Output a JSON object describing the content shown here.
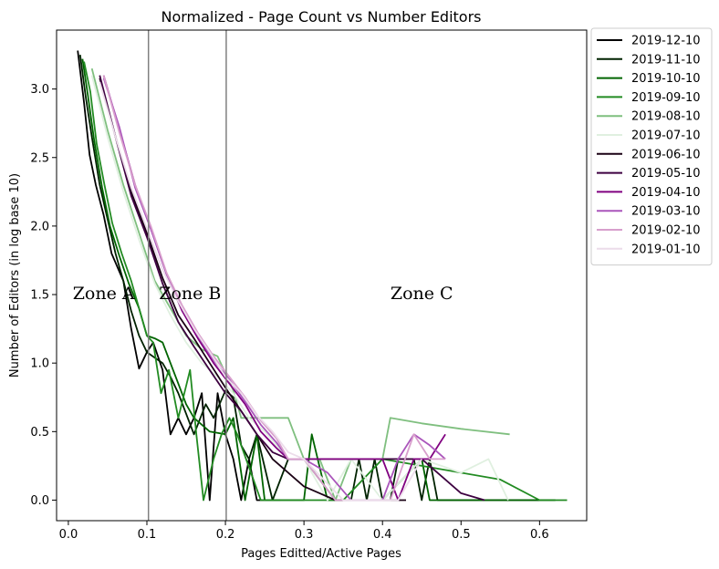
{
  "chart_data": {
    "type": "line",
    "title": "Normalized - Page Count vs Number Editors",
    "xlabel": "Pages Editted/Active Pages",
    "ylabel": "Number of Editors (in log base 10)",
    "xlim": [
      -0.015,
      0.66
    ],
    "ylim": [
      -0.15,
      3.43
    ],
    "xticks": [
      0.0,
      0.1,
      0.2,
      0.3,
      0.4,
      0.5,
      0.6
    ],
    "xtick_labels": [
      "0.0",
      "0.1",
      "0.2",
      "0.3",
      "0.4",
      "0.5",
      "0.6"
    ],
    "yticks": [
      0.0,
      0.5,
      1.0,
      1.5,
      2.0,
      2.5,
      3.0
    ],
    "ytick_labels": [
      "0.0",
      "0.5",
      "1.0",
      "1.5",
      "2.0",
      "2.5",
      "3.0"
    ],
    "grid": false,
    "legend_position": "outside-top-right",
    "vlines": [
      0.102,
      0.201
    ],
    "vline_color": "#808080",
    "annotations": [
      {
        "text": "Zone A",
        "x": 0.045,
        "y": 1.5
      },
      {
        "text": "Zone B",
        "x": 0.155,
        "y": 1.5
      },
      {
        "text": "Zone C",
        "x": 0.45,
        "y": 1.5
      }
    ],
    "series": [
      {
        "name": "2019-12-10",
        "color": "#000000",
        "x": [
          0.012,
          0.02,
          0.027,
          0.035,
          0.045,
          0.055,
          0.07,
          0.08,
          0.09,
          0.1,
          0.108,
          0.12,
          0.13,
          0.14,
          0.15,
          0.16,
          0.17,
          0.18,
          0.19,
          0.2,
          0.21,
          0.22,
          0.23,
          0.24,
          0.25,
          0.26,
          0.27
        ],
        "y": [
          3.28,
          2.9,
          2.52,
          2.3,
          2.08,
          1.8,
          1.6,
          1.25,
          0.96,
          1.08,
          1.15,
          0.95,
          0.48,
          0.6,
          0.48,
          0.6,
          0.78,
          0.0,
          0.78,
          0.48,
          0.3,
          0.0,
          0.3,
          0.0,
          0.0,
          0.0,
          0.0
        ]
      },
      {
        "name": "2019-11-10",
        "color": "#002200",
        "x": [
          0.015,
          0.022,
          0.03,
          0.04,
          0.05,
          0.06,
          0.07,
          0.08,
          0.09,
          0.1,
          0.11,
          0.12,
          0.13,
          0.14,
          0.16,
          0.175,
          0.185,
          0.2,
          0.21,
          0.22,
          0.23,
          0.24,
          0.26,
          0.28,
          0.3,
          0.34,
          0.36,
          0.37,
          0.38,
          0.39,
          0.4,
          0.41,
          0.42,
          0.44,
          0.45,
          0.46,
          0.47,
          0.5,
          0.55,
          0.6,
          0.62
        ],
        "y": [
          3.25,
          2.95,
          2.65,
          2.3,
          2.05,
          1.8,
          1.6,
          1.38,
          1.2,
          1.08,
          1.04,
          1.0,
          0.9,
          0.78,
          0.48,
          0.7,
          0.6,
          0.8,
          0.75,
          0.4,
          0.3,
          0.48,
          0.0,
          0.3,
          0.3,
          0.0,
          0.0,
          0.3,
          0.0,
          0.3,
          0.0,
          0.0,
          0.3,
          0.3,
          0.0,
          0.3,
          0.0,
          0.0,
          0.0,
          0.0,
          0.0
        ]
      },
      {
        "name": "2019-10-10",
        "color": "#006400",
        "x": [
          0.018,
          0.025,
          0.033,
          0.043,
          0.053,
          0.065,
          0.077,
          0.09,
          0.1,
          0.11,
          0.12,
          0.13,
          0.14,
          0.15,
          0.16,
          0.18,
          0.2,
          0.21,
          0.225,
          0.24,
          0.25,
          0.3,
          0.31,
          0.33,
          0.35,
          0.4,
          0.45,
          0.46,
          0.5,
          0.6,
          0.62
        ],
        "y": [
          3.22,
          2.95,
          2.62,
          2.28,
          2.0,
          1.78,
          1.58,
          1.4,
          1.2,
          1.18,
          1.15,
          1.0,
          0.85,
          0.7,
          0.6,
          0.5,
          0.48,
          0.6,
          0.0,
          0.48,
          0.0,
          0.0,
          0.48,
          0.0,
          0.0,
          0.0,
          0.3,
          0.0,
          0.0,
          0.0,
          0.0
        ]
      },
      {
        "name": "2019-09-10",
        "color": "#228b22",
        "x": [
          0.02,
          0.028,
          0.036,
          0.046,
          0.056,
          0.068,
          0.08,
          0.09,
          0.1,
          0.108,
          0.118,
          0.128,
          0.14,
          0.155,
          0.163,
          0.172,
          0.185,
          0.195,
          0.205,
          0.215,
          0.245,
          0.3,
          0.35,
          0.4,
          0.45,
          0.5,
          0.55,
          0.6,
          0.635
        ],
        "y": [
          3.2,
          2.98,
          2.6,
          2.3,
          2.02,
          1.8,
          1.6,
          1.4,
          1.2,
          1.15,
          0.78,
          0.95,
          0.6,
          0.95,
          0.48,
          0.0,
          0.3,
          0.48,
          0.6,
          0.48,
          0.0,
          0.0,
          0.0,
          0.3,
          0.25,
          0.2,
          0.15,
          0.0,
          0.0
        ]
      },
      {
        "name": "2019-08-10",
        "color": "#7fbf7f",
        "x": [
          0.03,
          0.05,
          0.07,
          0.09,
          0.11,
          0.13,
          0.15,
          0.17,
          0.19,
          0.21,
          0.22,
          0.25,
          0.28,
          0.3,
          0.32,
          0.34,
          0.36,
          0.38,
          0.4,
          0.41,
          0.45,
          0.5,
          0.562
        ],
        "y": [
          3.15,
          2.7,
          2.3,
          1.95,
          1.6,
          1.4,
          1.2,
          1.1,
          1.05,
          0.8,
          0.6,
          0.6,
          0.6,
          0.3,
          0.3,
          0.0,
          0.3,
          0.3,
          0.3,
          0.6,
          0.56,
          0.52,
          0.48
        ]
      },
      {
        "name": "2019-07-10",
        "color": "#e0f0e0",
        "x": [
          0.03,
          0.05,
          0.07,
          0.09,
          0.11,
          0.13,
          0.15,
          0.17,
          0.19,
          0.21,
          0.23,
          0.25,
          0.28,
          0.3,
          0.33,
          0.36,
          0.4,
          0.45,
          0.5,
          0.535,
          0.56
        ],
        "y": [
          3.1,
          2.65,
          2.25,
          1.9,
          1.58,
          1.35,
          1.15,
          1.0,
          0.9,
          0.78,
          0.6,
          0.5,
          0.3,
          0.3,
          0.0,
          0.3,
          0.0,
          0.3,
          0.2,
          0.3,
          0.0
        ]
      },
      {
        "name": "2019-06-10",
        "color": "#1a0014",
        "x": [
          0.04,
          0.06,
          0.08,
          0.1,
          0.12,
          0.14,
          0.16,
          0.18,
          0.2,
          0.22,
          0.24,
          0.26,
          0.28,
          0.3,
          0.32,
          0.34,
          0.35,
          0.37,
          0.4,
          0.43
        ],
        "y": [
          3.08,
          2.65,
          2.25,
          1.95,
          1.62,
          1.35,
          1.18,
          1.0,
          0.82,
          0.65,
          0.48,
          0.3,
          0.2,
          0.1,
          0.05,
          0.0,
          0.0,
          0.0,
          0.0,
          0.0
        ]
      },
      {
        "name": "2019-05-10",
        "color": "#3d0040",
        "x": [
          0.04,
          0.06,
          0.08,
          0.1,
          0.12,
          0.14,
          0.16,
          0.18,
          0.2,
          0.22,
          0.24,
          0.26,
          0.28,
          0.3,
          0.35,
          0.4,
          0.42,
          0.45,
          0.48,
          0.5,
          0.53
        ],
        "y": [
          3.1,
          2.65,
          2.22,
          1.92,
          1.58,
          1.3,
          1.12,
          0.95,
          0.78,
          0.65,
          0.48,
          0.35,
          0.3,
          0.3,
          0.3,
          0.3,
          0.3,
          0.3,
          0.15,
          0.05,
          0.0
        ]
      },
      {
        "name": "2019-04-10",
        "color": "#800080",
        "x": [
          0.045,
          0.065,
          0.085,
          0.105,
          0.125,
          0.145,
          0.165,
          0.185,
          0.205,
          0.225,
          0.245,
          0.265,
          0.28,
          0.3,
          0.35,
          0.4,
          0.42,
          0.44,
          0.46,
          0.48
        ],
        "y": [
          3.1,
          2.7,
          2.3,
          1.98,
          1.65,
          1.38,
          1.18,
          1.0,
          0.85,
          0.7,
          0.5,
          0.38,
          0.3,
          0.3,
          0.3,
          0.3,
          0.0,
          0.3,
          0.3,
          0.48
        ]
      },
      {
        "name": "2019-03-10",
        "color": "#aa55bb",
        "x": [
          0.045,
          0.065,
          0.085,
          0.105,
          0.125,
          0.145,
          0.165,
          0.185,
          0.205,
          0.225,
          0.245,
          0.265,
          0.28,
          0.3,
          0.33,
          0.36,
          0.38,
          0.4,
          0.42,
          0.44,
          0.46,
          0.48
        ],
        "y": [
          3.08,
          2.72,
          2.28,
          1.98,
          1.65,
          1.4,
          1.2,
          1.02,
          0.88,
          0.72,
          0.55,
          0.42,
          0.3,
          0.3,
          0.2,
          0.0,
          0.0,
          0.0,
          0.3,
          0.48,
          0.4,
          0.3
        ]
      },
      {
        "name": "2019-02-10",
        "color": "#d89fcc",
        "x": [
          0.045,
          0.065,
          0.085,
          0.105,
          0.125,
          0.145,
          0.165,
          0.185,
          0.205,
          0.225,
          0.245,
          0.265,
          0.28,
          0.3,
          0.34,
          0.38,
          0.41,
          0.44,
          0.46,
          0.48
        ],
        "y": [
          3.1,
          2.68,
          2.3,
          2.0,
          1.66,
          1.42,
          1.22,
          1.05,
          0.9,
          0.75,
          0.58,
          0.45,
          0.3,
          0.3,
          0.0,
          0.0,
          0.0,
          0.48,
          0.3,
          0.3
        ]
      },
      {
        "name": "2019-01-10",
        "color": "#ecdcea",
        "x": [
          0.04,
          0.06,
          0.08,
          0.1,
          0.12,
          0.14,
          0.16,
          0.18,
          0.2,
          0.22,
          0.24,
          0.26,
          0.28,
          0.3,
          0.35,
          0.38,
          0.42,
          0.45
        ],
        "y": [
          3.05,
          2.65,
          2.28,
          1.98,
          1.68,
          1.45,
          1.25,
          1.08,
          0.9,
          0.78,
          0.62,
          0.5,
          0.35,
          0.3,
          0.0,
          0.0,
          0.0,
          0.3
        ]
      }
    ]
  }
}
